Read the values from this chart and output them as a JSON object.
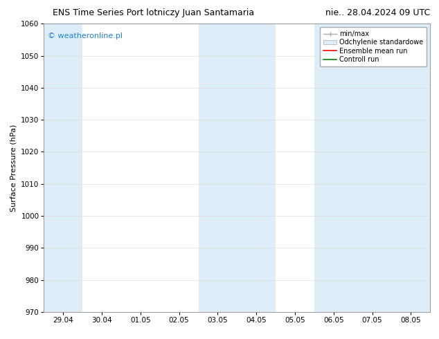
{
  "title_left": "ENS Time Series Port lotniczy Juan Santamaria",
  "title_right": "nie.. 28.04.2024 09 UTC",
  "ylabel": "Surface Pressure (hPa)",
  "ylim": [
    970,
    1060
  ],
  "yticks": [
    970,
    980,
    990,
    1000,
    1010,
    1020,
    1030,
    1040,
    1050,
    1060
  ],
  "xtick_labels": [
    "29.04",
    "30.04",
    "01.05",
    "02.05",
    "03.05",
    "04.05",
    "05.05",
    "06.05",
    "07.05",
    "08.05"
  ],
  "xtick_positions": [
    0,
    1,
    2,
    3,
    4,
    5,
    6,
    7,
    8,
    9
  ],
  "xlim": [
    -0.5,
    9.5
  ],
  "shaded_columns": [
    0,
    4,
    5,
    7,
    8,
    9
  ],
  "shade_color": "#ddeef8",
  "background_color": "#ffffff",
  "watermark_text": "© weatheronline.pl",
  "watermark_color": "#1e7fd4",
  "legend_entries": [
    "min/max",
    "Odchylenie standardowe",
    "Ensemble mean run",
    "Controll run"
  ],
  "legend_minmax_color": "#aaaaaa",
  "legend_std_facecolor": "#ddeef8",
  "legend_std_edgecolor": "#aaaaaa",
  "legend_ens_color": "#ff0000",
  "legend_ctrl_color": "#008000",
  "title_fontsize": 9,
  "axis_label_fontsize": 8,
  "tick_fontsize": 7.5,
  "legend_fontsize": 7,
  "watermark_fontsize": 8
}
